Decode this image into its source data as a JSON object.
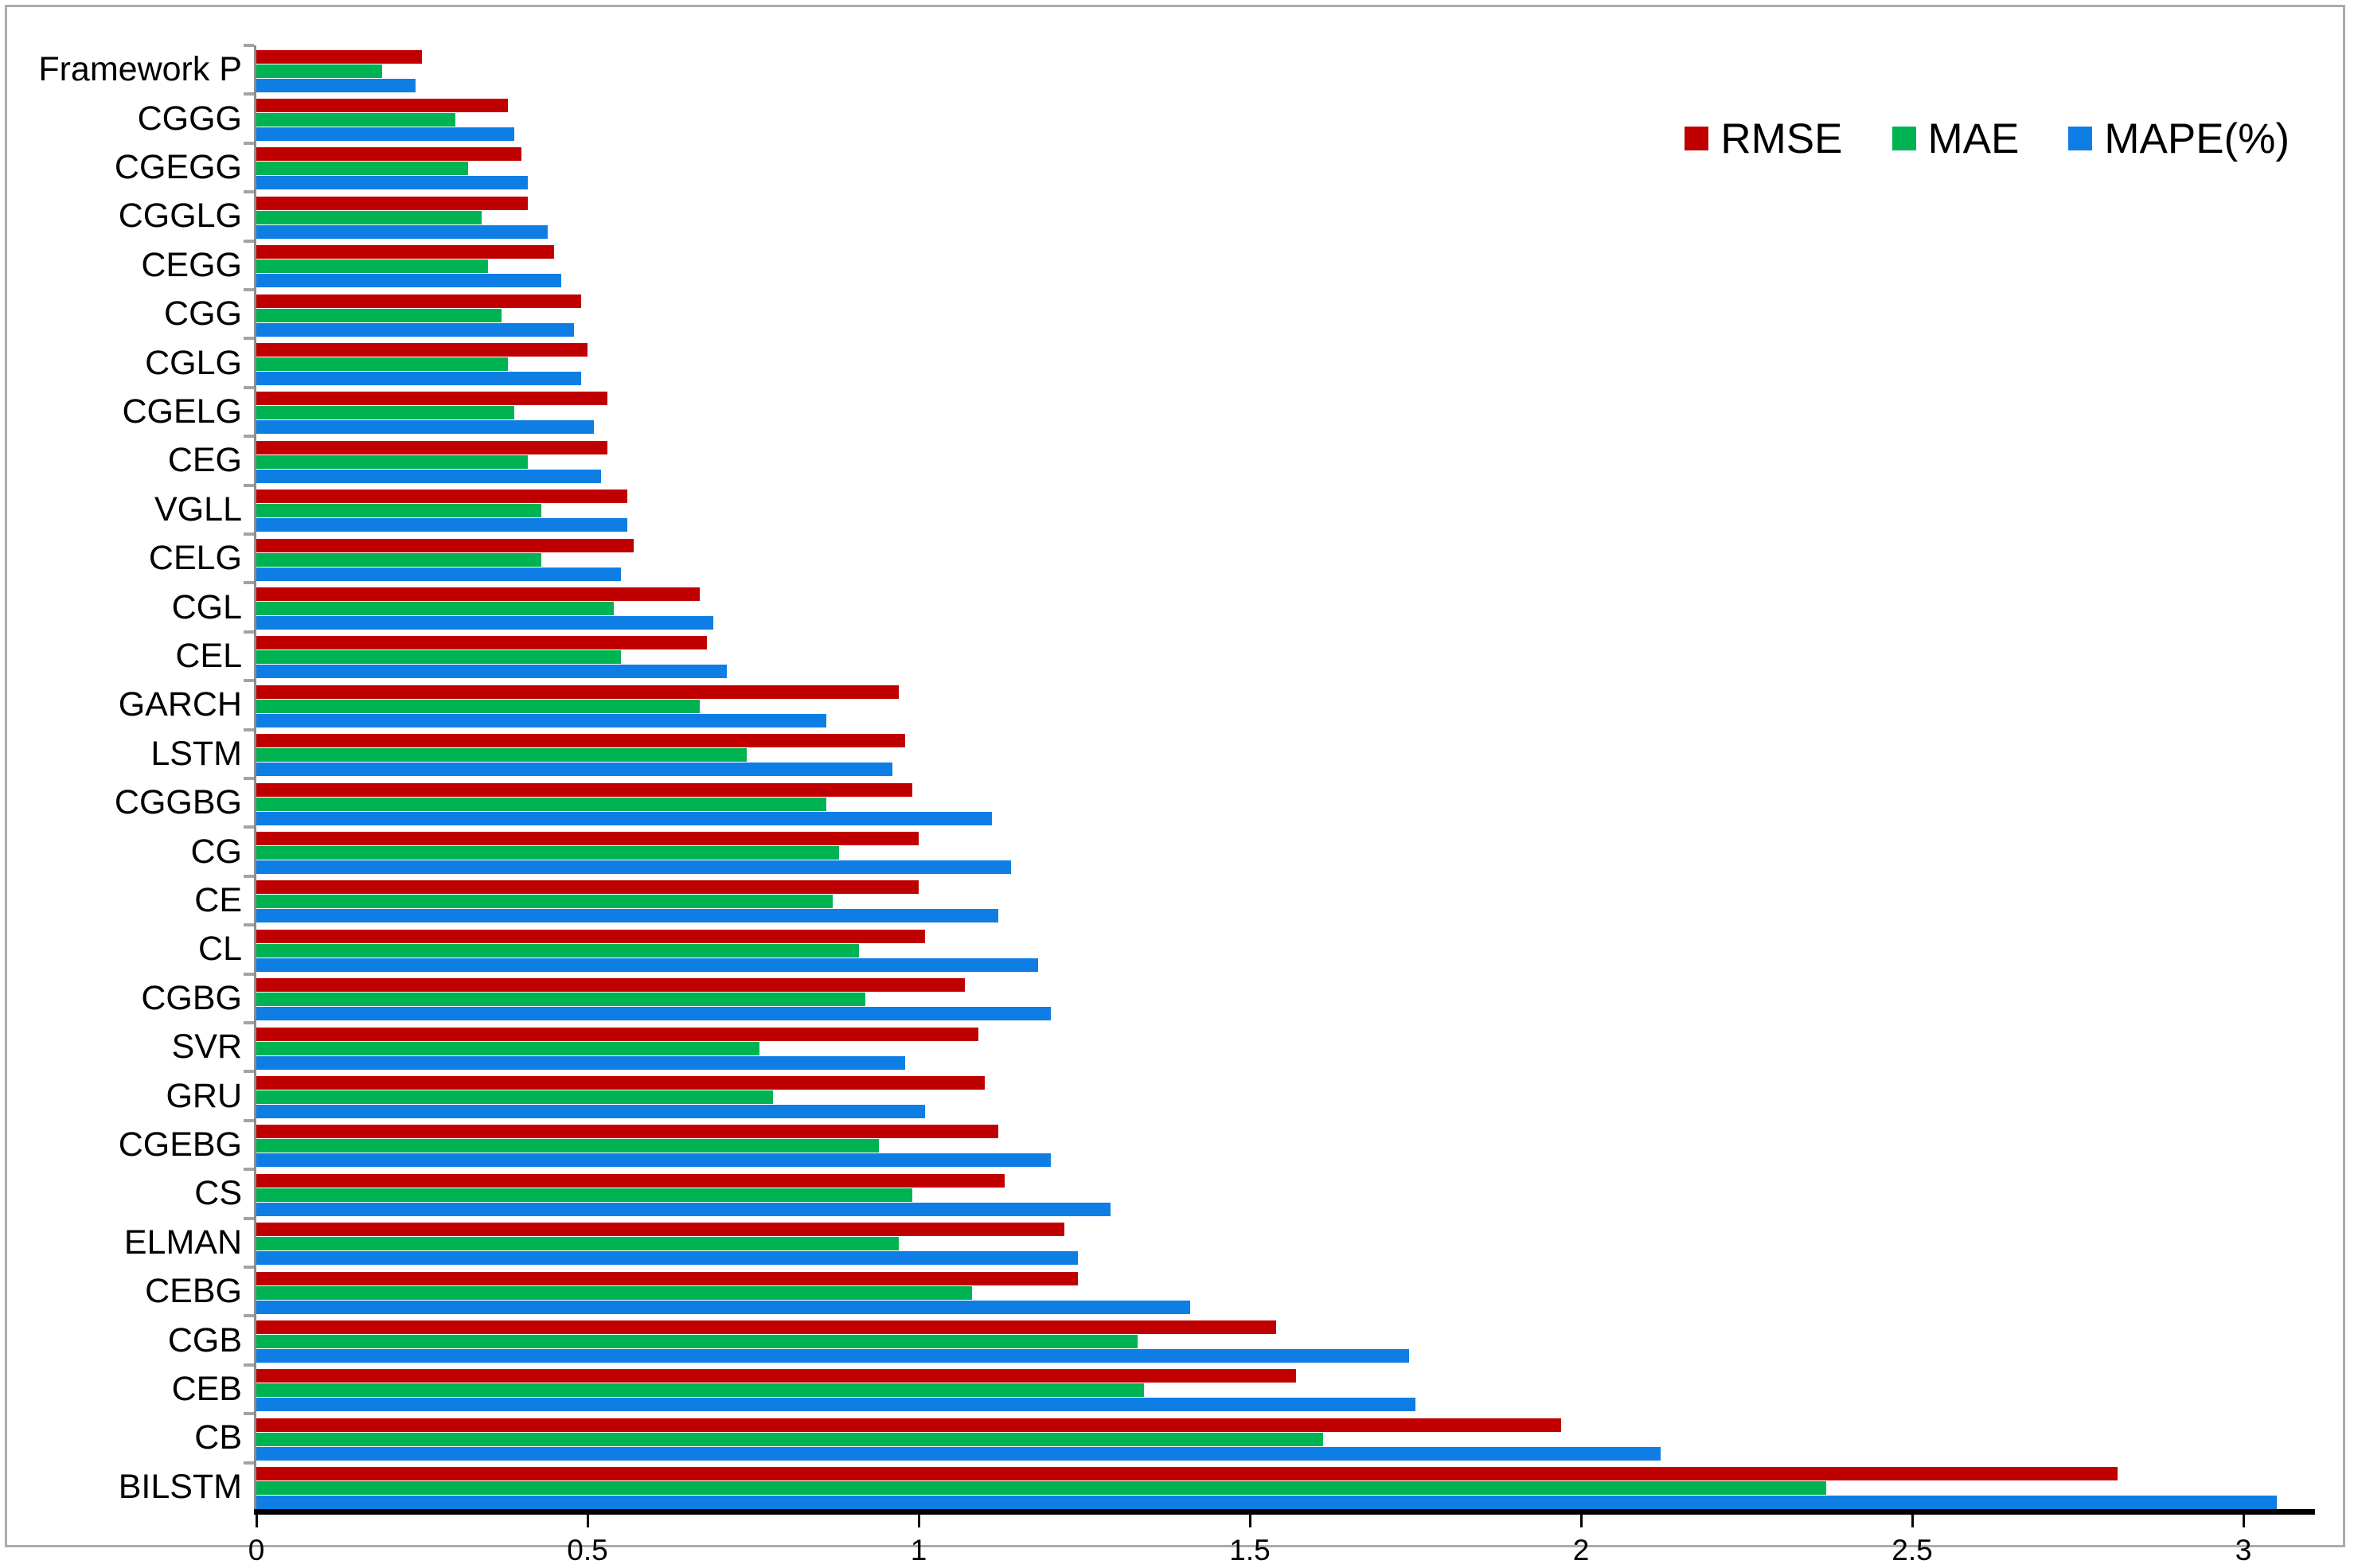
{
  "figure": {
    "background": "#ffffff",
    "frame_border_color": "#ababab",
    "axis_line_color": "#8c8c8c",
    "x_axis_color": "#000000"
  },
  "chart_data": {
    "type": "bar",
    "orientation": "horizontal",
    "title": "",
    "xlabel": "",
    "ylabel": "",
    "grid": false,
    "legend_position": "top-right",
    "xlim": [
      0,
      3.1
    ],
    "x_tick_values": [
      0,
      0.5,
      1,
      1.5,
      2,
      2.5,
      3
    ],
    "x_tick_labels": [
      "0",
      "0.5",
      "1",
      "1.5",
      "2",
      "2.5",
      "3"
    ],
    "categories": [
      "Framework P",
      "CGGG",
      "CGEGG",
      "CGGLG",
      "CEGG",
      "CGG",
      "CGLG",
      "CGELG",
      "CEG",
      "VGLL",
      "CELG",
      "CGL",
      "CEL",
      "GARCH",
      "LSTM",
      "CGGBG",
      "CG",
      "CE",
      "CL",
      "CGBG",
      "SVR",
      "GRU",
      "CGEBG",
      "CS",
      "ELMAN",
      "CEBG",
      "CGB",
      "CEB",
      "CB",
      "BILSTM"
    ],
    "series": [
      {
        "name": "RMSE",
        "color": "#C00000",
        "values": [
          0.25,
          0.38,
          0.4,
          0.41,
          0.45,
          0.49,
          0.5,
          0.53,
          0.53,
          0.56,
          0.57,
          0.67,
          0.68,
          0.97,
          0.98,
          0.99,
          1.0,
          1.0,
          1.01,
          1.07,
          1.09,
          1.1,
          1.12,
          1.13,
          1.22,
          1.24,
          1.54,
          1.57,
          1.97,
          2.81
        ]
      },
      {
        "name": "MAE",
        "color": "#00B352",
        "values": [
          0.19,
          0.3,
          0.32,
          0.34,
          0.35,
          0.37,
          0.38,
          0.39,
          0.41,
          0.43,
          0.43,
          0.54,
          0.55,
          0.67,
          0.74,
          0.86,
          0.88,
          0.87,
          0.91,
          0.92,
          0.76,
          0.78,
          0.94,
          0.99,
          0.97,
          1.08,
          1.33,
          1.34,
          1.61,
          2.37
        ]
      },
      {
        "name": "MAPE(%)",
        "color": "#0E7EE5",
        "values": [
          0.24,
          0.39,
          0.41,
          0.44,
          0.46,
          0.48,
          0.49,
          0.51,
          0.52,
          0.56,
          0.55,
          0.69,
          0.71,
          0.86,
          0.96,
          1.11,
          1.14,
          1.12,
          1.18,
          1.2,
          0.98,
          1.01,
          1.2,
          1.29,
          1.24,
          1.41,
          1.74,
          1.75,
          2.12,
          3.05
        ]
      }
    ]
  }
}
